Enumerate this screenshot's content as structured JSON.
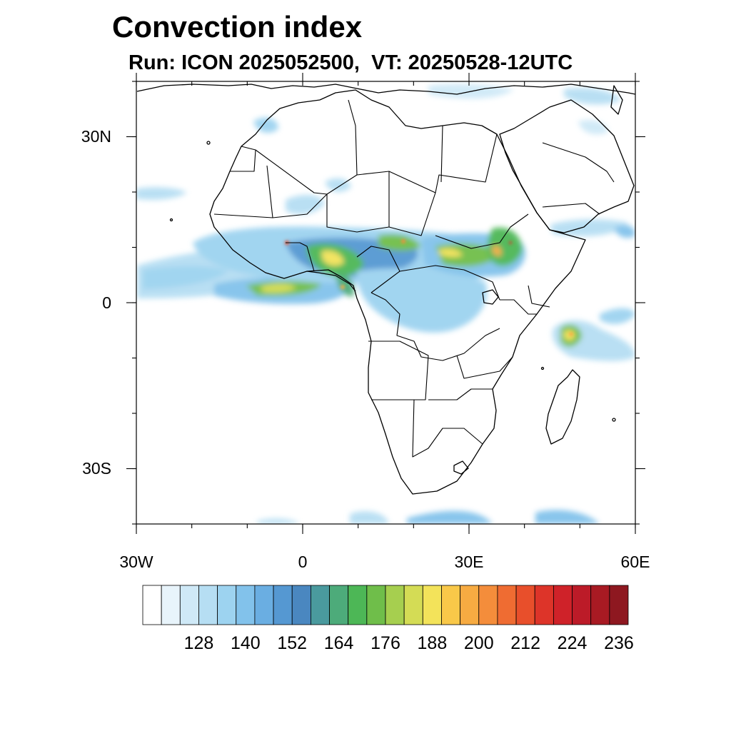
{
  "title": "Convection index",
  "subtitle": "Run: ICON 2025052500,  VT: 20250528-12UTC",
  "map": {
    "region": "Africa",
    "lon_range": [
      -30,
      60
    ],
    "lat_range": [
      -40,
      40
    ],
    "x_ticks": [
      {
        "value": -30,
        "label": "30W"
      },
      {
        "value": 0,
        "label": "0"
      },
      {
        "value": 30,
        "label": "30E"
      },
      {
        "value": 60,
        "label": "60E"
      }
    ],
    "y_ticks": [
      {
        "value": 30,
        "label": "30N"
      },
      {
        "value": 0,
        "label": "0"
      },
      {
        "value": -30,
        "label": "30S"
      }
    ]
  },
  "colorbar": {
    "colors": [
      "#ffffff",
      "#e8f4fb",
      "#cfe9f7",
      "#b6def3",
      "#9dd3f0",
      "#82c2eb",
      "#6aaee2",
      "#5598d2",
      "#4a87c0",
      "#4a9a9e",
      "#4dab7a",
      "#4db756",
      "#6fbe4a",
      "#a6cf4f",
      "#d4dc55",
      "#f3e35a",
      "#f9c849",
      "#f7ab42",
      "#f48d3b",
      "#ef6c32",
      "#e84f2b",
      "#dd3429",
      "#cf2229",
      "#bc1b28",
      "#a81a23",
      "#8e1820"
    ],
    "labels": [
      "128",
      "140",
      "152",
      "164",
      "176",
      "188",
      "200",
      "212",
      "224",
      "236"
    ]
  }
}
